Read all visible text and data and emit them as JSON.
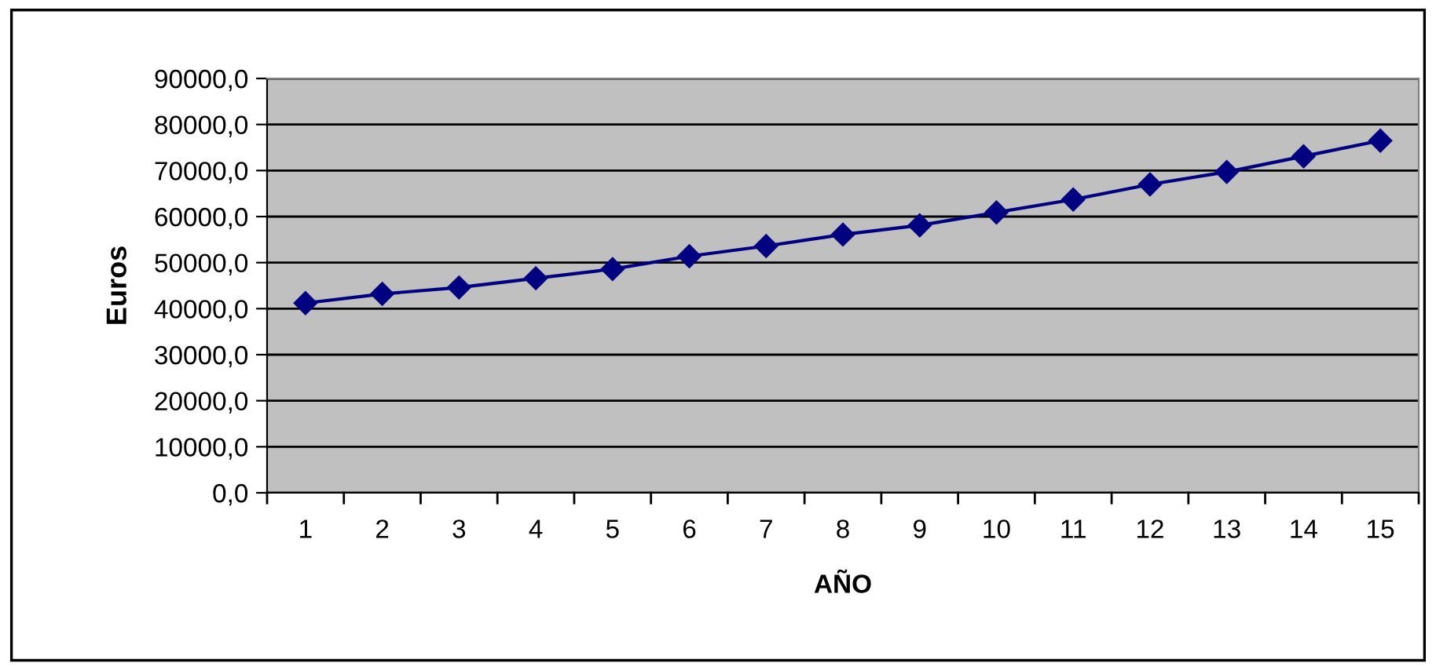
{
  "chart_data": {
    "type": "line",
    "xlabel": "AÑO",
    "ylabel": "Euros",
    "categories": [
      "1",
      "2",
      "3",
      "4",
      "5",
      "6",
      "7",
      "8",
      "9",
      "10",
      "11",
      "12",
      "13",
      "14",
      "15"
    ],
    "series": [
      {
        "color": "#000080",
        "values": [
          41200,
          43200,
          44600,
          46600,
          48600,
          51400,
          53600,
          56100,
          58100,
          60900,
          63700,
          67000,
          69700,
          73100,
          76500
        ]
      }
    ],
    "ylim": [
      0,
      90000
    ],
    "yticks": [
      {
        "value": 0,
        "label": "0,0"
      },
      {
        "value": 10000,
        "label": "10000,0"
      },
      {
        "value": 20000,
        "label": "20000,0"
      },
      {
        "value": 30000,
        "label": "30000,0"
      },
      {
        "value": 40000,
        "label": "40000,0"
      },
      {
        "value": 50000,
        "label": "50000,0"
      },
      {
        "value": 60000,
        "label": "60000,0"
      },
      {
        "value": 70000,
        "label": "70000,0"
      },
      {
        "value": 80000,
        "label": "80000,0"
      },
      {
        "value": 90000,
        "label": "90000,0"
      }
    ],
    "grid": "y",
    "marker": "diamond",
    "line_style": "solid"
  }
}
